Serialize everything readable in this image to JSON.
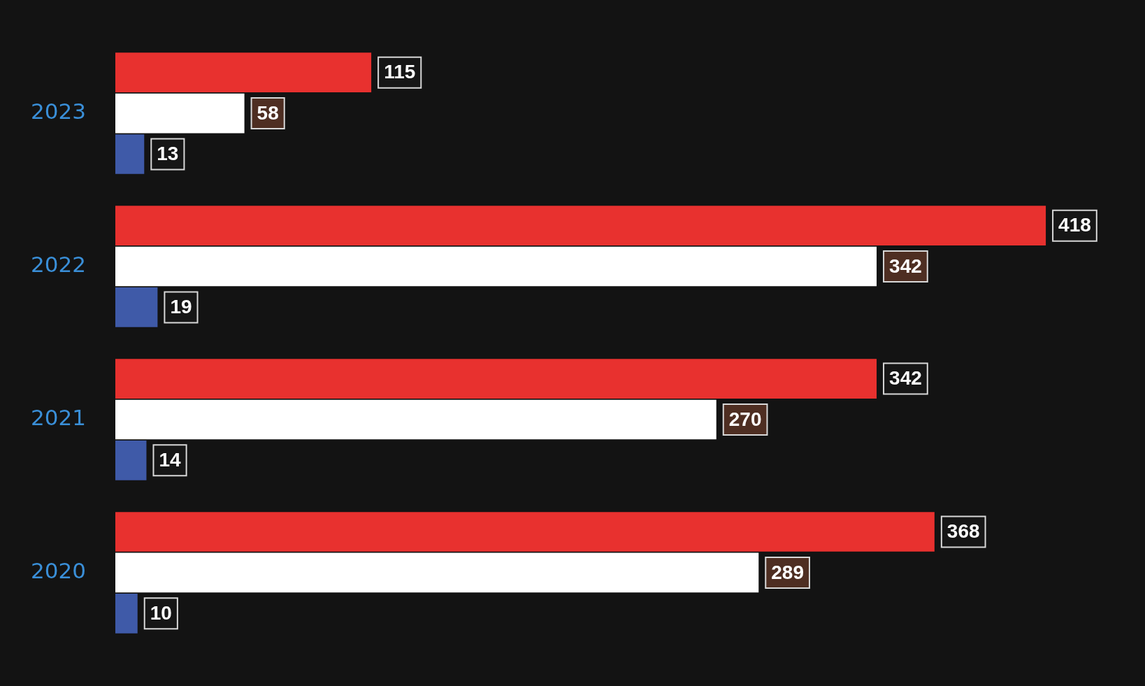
{
  "chart_data": {
    "type": "bar",
    "orientation": "horizontal",
    "categories": [
      "2023",
      "2022",
      "2021",
      "2020"
    ],
    "series": [
      {
        "color": "#e8312f",
        "values": [
          115,
          418,
          342,
          368
        ]
      },
      {
        "color": "#ffffff",
        "values": [
          58,
          342,
          270,
          289
        ]
      },
      {
        "color": "#3f5aa8",
        "values": [
          13,
          19,
          14,
          10
        ]
      }
    ],
    "data_labels": true,
    "tick_labels": "y",
    "legend": false
  }
}
